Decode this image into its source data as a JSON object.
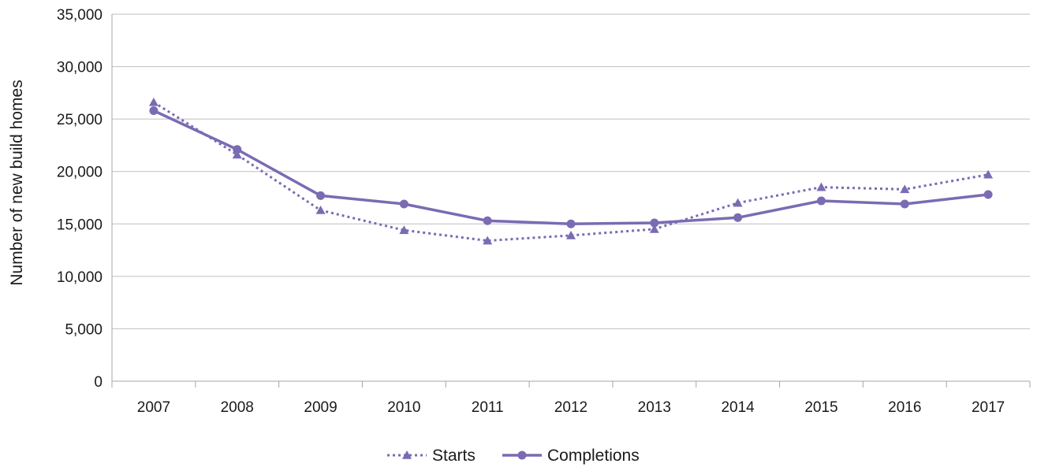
{
  "chart_data": {
    "type": "line",
    "title": "",
    "xlabel": "",
    "ylabel": "Number of new build homes",
    "categories": [
      "2007",
      "2008",
      "2009",
      "2010",
      "2011",
      "2012",
      "2013",
      "2014",
      "2015",
      "2016",
      "2017"
    ],
    "ylim": [
      0,
      35000
    ],
    "yticks": [
      0,
      5000,
      10000,
      15000,
      20000,
      25000,
      30000,
      35000
    ],
    "ytick_labels": [
      "0",
      "5,000",
      "10,000",
      "15,000",
      "20,000",
      "25,000",
      "30,000",
      "35,000"
    ],
    "grid": "horizontal",
    "legend_position": "bottom-center",
    "series": [
      {
        "name": "Starts",
        "line_style": "dotted",
        "marker": "triangle",
        "color": "#7b6bb3",
        "values": [
          26600,
          21600,
          16300,
          14400,
          13400,
          13900,
          14500,
          17000,
          18500,
          18300,
          19700
        ]
      },
      {
        "name": "Completions",
        "line_style": "solid",
        "marker": "circle",
        "color": "#7b6bb3",
        "values": [
          25800,
          22100,
          17700,
          16900,
          15300,
          15000,
          15100,
          15600,
          17200,
          16900,
          17800
        ]
      }
    ]
  }
}
